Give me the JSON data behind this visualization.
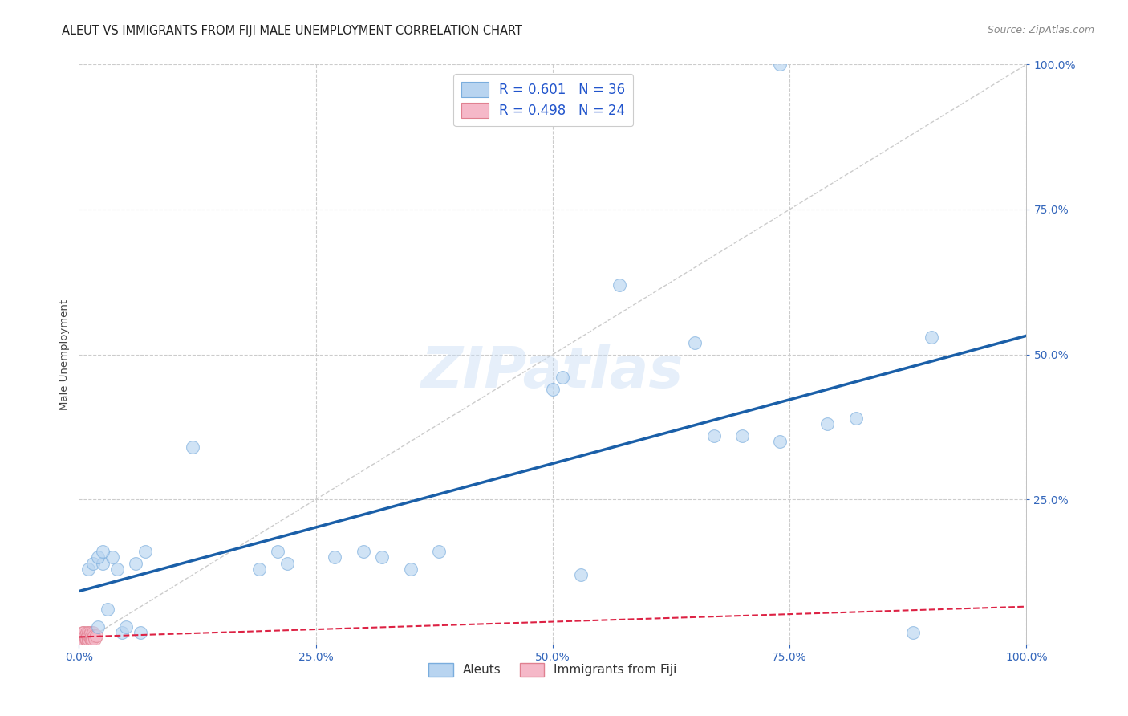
{
  "title": "ALEUT VS IMMIGRANTS FROM FIJI MALE UNEMPLOYMENT CORRELATION CHART",
  "source": "Source: ZipAtlas.com",
  "ylabel": "Male Unemployment",
  "xlim": [
    0,
    1
  ],
  "ylim": [
    0,
    1
  ],
  "xticks": [
    0.0,
    0.25,
    0.5,
    0.75,
    1.0
  ],
  "yticks": [
    0.0,
    0.25,
    0.5,
    0.75,
    1.0
  ],
  "xticklabels": [
    "0.0%",
    "25.0%",
    "50.0%",
    "75.0%",
    "100.0%"
  ],
  "yticklabels": [
    "",
    "25.0%",
    "50.0%",
    "75.0%",
    "100.0%"
  ],
  "aleut_color": "#b8d4f0",
  "aleut_edge_color": "#7aaddd",
  "fiji_color": "#f5b8c8",
  "fiji_edge_color": "#e08090",
  "regression_aleut_color": "#1a5fa8",
  "regression_fiji_color": "#dd2244",
  "diagonal_color": "#cccccc",
  "R_aleut": 0.601,
  "N_aleut": 36,
  "R_fiji": 0.498,
  "N_fiji": 24,
  "legend_label_aleut": "Aleuts",
  "legend_label_fiji": "Immigrants from Fiji",
  "legend_text_color": "#2255cc",
  "watermark": "ZIPatlas",
  "aleut_x": [
    0.01,
    0.015,
    0.02,
    0.025,
    0.03,
    0.035,
    0.04,
    0.045,
    0.05,
    0.06,
    0.065,
    0.07,
    0.02,
    0.025,
    0.12,
    0.19,
    0.21,
    0.22,
    0.27,
    0.3,
    0.32,
    0.35,
    0.38,
    0.5,
    0.51,
    0.53,
    0.57,
    0.65,
    0.67,
    0.7,
    0.74,
    0.79,
    0.82,
    0.88,
    0.9,
    0.74
  ],
  "aleut_y": [
    0.13,
    0.14,
    0.03,
    0.14,
    0.06,
    0.15,
    0.13,
    0.02,
    0.03,
    0.14,
    0.02,
    0.16,
    0.15,
    0.16,
    0.34,
    0.13,
    0.16,
    0.14,
    0.15,
    0.16,
    0.15,
    0.13,
    0.16,
    0.44,
    0.46,
    0.12,
    0.62,
    0.52,
    0.36,
    0.36,
    0.35,
    0.38,
    0.39,
    0.02,
    0.53,
    1.0
  ],
  "fiji_x": [
    0.0,
    0.002,
    0.003,
    0.004,
    0.005,
    0.005,
    0.006,
    0.007,
    0.008,
    0.008,
    0.009,
    0.01,
    0.01,
    0.01,
    0.011,
    0.012,
    0.012,
    0.013,
    0.013,
    0.014,
    0.015,
    0.016,
    0.017,
    0.018
  ],
  "fiji_y": [
    0.01,
    0.015,
    0.01,
    0.02,
    0.005,
    0.02,
    0.015,
    0.01,
    0.008,
    0.02,
    0.015,
    0.005,
    0.01,
    0.02,
    0.015,
    0.01,
    0.02,
    0.015,
    0.008,
    0.01,
    0.02,
    0.015,
    0.01,
    0.015
  ],
  "dot_size": 130,
  "dot_alpha": 0.65,
  "grid_color": "#cccccc",
  "background_color": "#ffffff",
  "title_fontsize": 10.5,
  "axis_label_fontsize": 9.5,
  "tick_fontsize": 10,
  "tick_color": "#3366bb",
  "source_fontsize": 9
}
